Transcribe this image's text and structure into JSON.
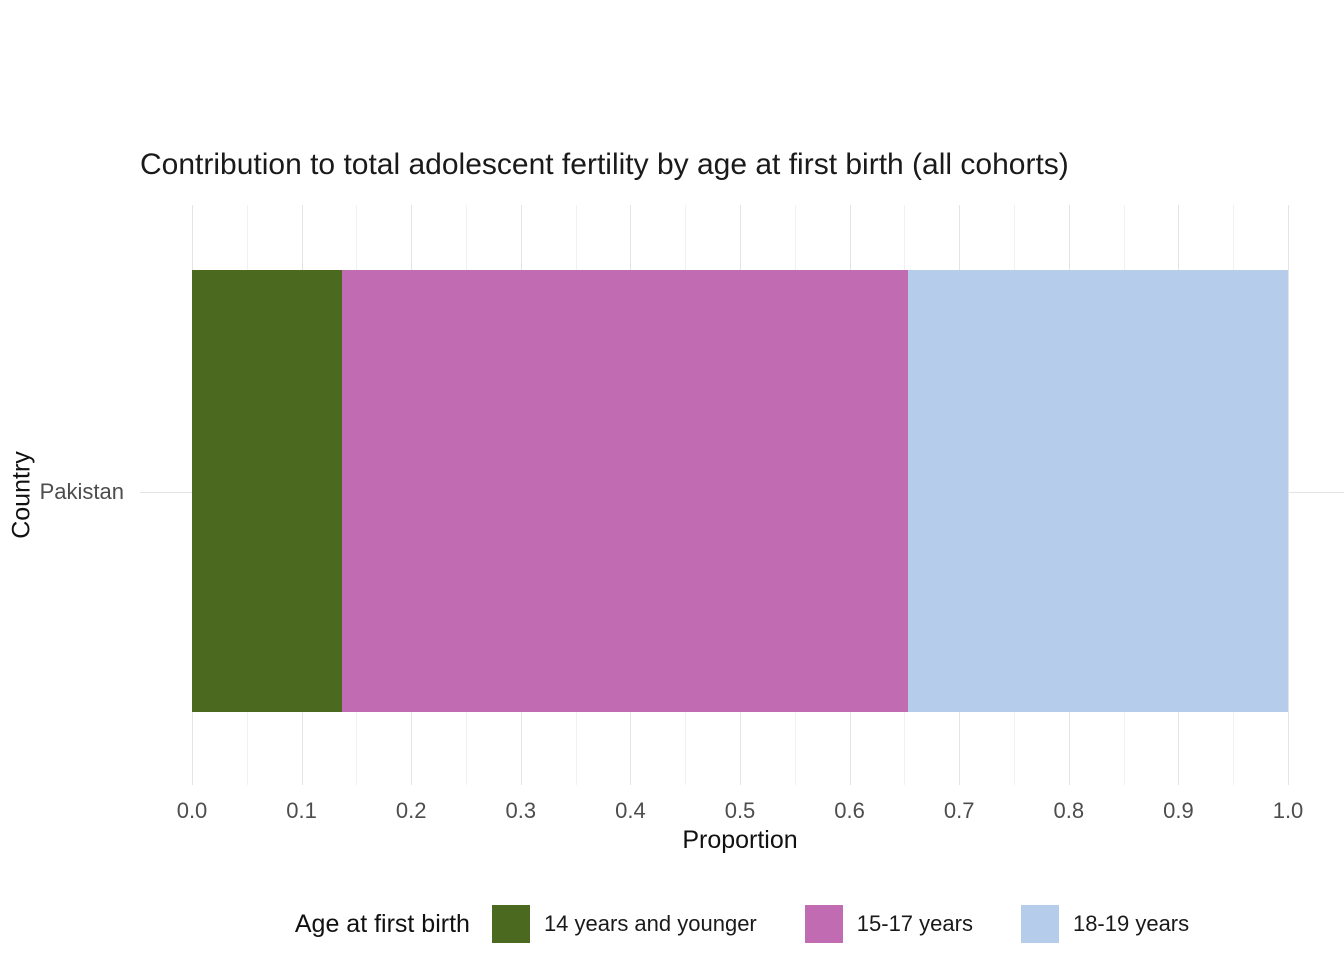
{
  "figure": {
    "title": "Contribution to total adolescent fertility by age at first birth (all cohorts)",
    "x_axis_label": "Proportion",
    "y_axis_label": "Country",
    "category_label": "Pakistan"
  },
  "legend": {
    "title": "Age at first birth",
    "items": [
      {
        "label": "14 years and younger",
        "color": "#4c6a1f"
      },
      {
        "label": "15-17 years",
        "color": "#c16cb2"
      },
      {
        "label": "18-19 years",
        "color": "#b5cdea"
      }
    ]
  },
  "chart_data": {
    "type": "bar",
    "orientation": "horizontal",
    "stacked": true,
    "title": "Contribution to total adolescent fertility by age at first birth (all cohorts)",
    "xlabel": "Proportion",
    "ylabel": "Country",
    "categories": [
      "Pakistan"
    ],
    "series": [
      {
        "name": "14 years and younger",
        "values": [
          0.137
        ],
        "color": "#4c6a1f"
      },
      {
        "name": "15-17 years",
        "values": [
          0.516
        ],
        "color": "#c16cb2"
      },
      {
        "name": "18-19 years",
        "values": [
          0.347
        ],
        "color": "#b5cdea"
      }
    ],
    "xlim": [
      0,
      1
    ],
    "x_ticks": [
      "0.0",
      "0.1",
      "0.2",
      "0.3",
      "0.4",
      "0.5",
      "0.6",
      "0.7",
      "0.8",
      "0.9",
      "1.0"
    ],
    "grid": true,
    "legend_position": "bottom",
    "legend_title": "Age at first birth"
  },
  "style": {
    "background": "#ffffff",
    "grid_major_color": "#e4e4e4",
    "grid_minor_color": "#f1f1f1",
    "title_color": "#1a1a1a",
    "tick_label_color": "#4d4d4d"
  }
}
